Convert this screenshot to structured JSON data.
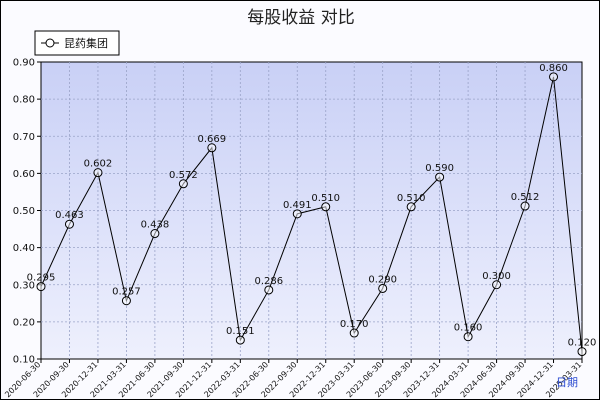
{
  "chart_data": {
    "type": "line",
    "title": "每股收益 对比",
    "xlabel": "日期",
    "ylabel": "",
    "ylim": [
      0.1,
      0.9
    ],
    "yticks": [
      "0.10",
      "0.20",
      "0.30",
      "0.40",
      "0.50",
      "0.60",
      "0.70",
      "0.80",
      "0.90"
    ],
    "grid": true,
    "legend_position": "top-left",
    "categories": [
      "2020-06-30",
      "2020-09-30",
      "2020-12-31",
      "2021-03-31",
      "2021-06-30",
      "2021-09-30",
      "2021-12-31",
      "2022-03-31",
      "2022-06-30",
      "2022-09-30",
      "2022-12-31",
      "2023-03-31",
      "2023-06-30",
      "2023-09-30",
      "2023-12-31",
      "2024-03-31",
      "2024-06-30",
      "2024-09-30",
      "2024-12-31",
      "2025-03-31"
    ],
    "series": [
      {
        "name": "昆药集团",
        "values": [
          0.295,
          0.463,
          0.602,
          0.257,
          0.438,
          0.572,
          0.669,
          0.151,
          0.286,
          0.491,
          0.51,
          0.17,
          0.29,
          0.51,
          0.59,
          0.16,
          0.3,
          0.512,
          0.86,
          0.12
        ],
        "labels": [
          "0.295",
          "0.463",
          "0.602",
          "0.257",
          "0.438",
          "0.572",
          "0.669",
          "0.151",
          "0.286",
          "0.491",
          "0.510",
          "0.170",
          "0.290",
          "0.510",
          "0.590",
          "0.160",
          "0.300",
          "0.512",
          "0.860",
          "0.120"
        ]
      }
    ],
    "colors": {
      "plot_bg_top": "#c9d0f6",
      "plot_bg_bottom": "#eef0fd",
      "grid": "#9aa3c8",
      "line": "#000000",
      "axis_title": "#2a4ad0"
    }
  }
}
